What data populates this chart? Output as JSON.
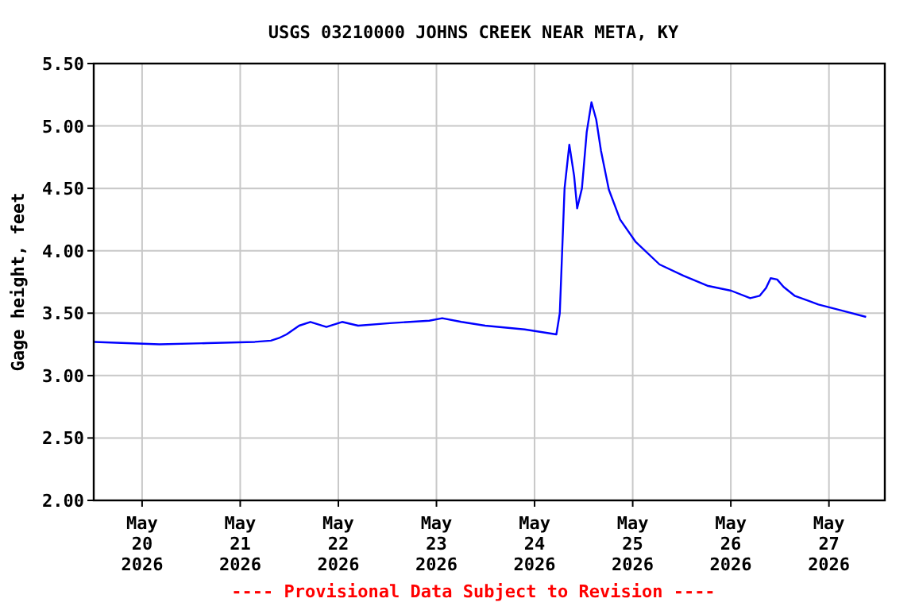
{
  "chart_data": {
    "type": "line",
    "title": "USGS 03210000 JOHNS CREEK NEAR META, KY",
    "ylabel": "Gage height, feet",
    "annotations": [
      "---- Provisional Data Subject to Revision ----"
    ],
    "xlim": [
      "2026-05-19T12:10",
      "2026-05-27T13:40"
    ],
    "xticks": [
      {
        "value": "2026-05-20",
        "label": "May\n20\n2026"
      },
      {
        "value": "2026-05-21",
        "label": "May\n21\n2026"
      },
      {
        "value": "2026-05-22",
        "label": "May\n22\n2026"
      },
      {
        "value": "2026-05-23",
        "label": "May\n23\n2026"
      },
      {
        "value": "2026-05-24",
        "label": "May\n24\n2026"
      },
      {
        "value": "2026-05-25",
        "label": "May\n25\n2026"
      },
      {
        "value": "2026-05-26",
        "label": "May\n26\n2026"
      },
      {
        "value": "2026-05-27",
        "label": "May\n27\n2026"
      }
    ],
    "ylim": [
      2,
      5.5
    ],
    "yticks": [
      {
        "value": 2,
        "label": "2.00"
      },
      {
        "value": 2.5,
        "label": "2.50"
      },
      {
        "value": 3,
        "label": "3.00"
      },
      {
        "value": 3.5,
        "label": "3.50"
      },
      {
        "value": 4,
        "label": "4.00"
      },
      {
        "value": 4.5,
        "label": "4.50"
      },
      {
        "value": 5,
        "label": "5.00"
      },
      {
        "value": 5.5,
        "label": "5.50"
      }
    ],
    "grid": true,
    "marker": "none",
    "line_style": "solid",
    "series": [
      {
        "color": "#0000ff",
        "x": [
          "2026-05-19T12:20",
          "2026-05-20T04:15",
          "2026-05-20T15:55",
          "2026-05-21T03:35",
          "2026-05-21T07:30",
          "2026-05-21T09:25",
          "2026-05-21T11:20",
          "2026-05-21T14:25",
          "2026-05-21T17:10",
          "2026-05-21T21:05",
          "2026-05-22T00:55",
          "2026-05-22T04:50",
          "2026-05-22T12:35",
          "2026-05-22T22:15",
          "2026-05-23T01:25",
          "2026-05-23T06:05",
          "2026-05-23T11:55",
          "2026-05-23T21:35",
          "2026-05-24T05:20",
          "2026-05-24T06:10",
          "2026-05-24T07:20",
          "2026-05-24T08:30",
          "2026-05-24T09:40",
          "2026-05-24T10:25",
          "2026-05-24T11:35",
          "2026-05-24T12:45",
          "2026-05-24T13:55",
          "2026-05-24T15:05",
          "2026-05-24T16:15",
          "2026-05-24T18:10",
          "2026-05-24T20:55",
          "2026-05-25T00:45",
          "2026-05-25T06:35",
          "2026-05-25T12:25",
          "2026-05-25T18:15",
          "2026-05-26T00:05",
          "2026-05-26T04:45",
          "2026-05-26T07:05",
          "2026-05-26T08:35",
          "2026-05-26T09:45",
          "2026-05-26T11:20",
          "2026-05-26T12:55",
          "2026-05-26T15:35",
          "2026-05-26T21:25",
          "2026-05-27T03:15",
          "2026-05-27T09:05"
        ],
        "values": [
          3.27,
          3.25,
          3.26,
          3.27,
          3.28,
          3.3,
          3.33,
          3.4,
          3.43,
          3.39,
          3.43,
          3.4,
          3.42,
          3.44,
          3.46,
          3.43,
          3.4,
          3.37,
          3.33,
          3.5,
          4.5,
          4.85,
          4.6,
          4.34,
          4.5,
          4.95,
          5.19,
          5.05,
          4.8,
          4.49,
          4.25,
          4.07,
          3.89,
          3.8,
          3.72,
          3.68,
          3.62,
          3.64,
          3.7,
          3.78,
          3.77,
          3.71,
          3.64,
          3.57,
          3.52,
          3.47
        ]
      }
    ]
  }
}
